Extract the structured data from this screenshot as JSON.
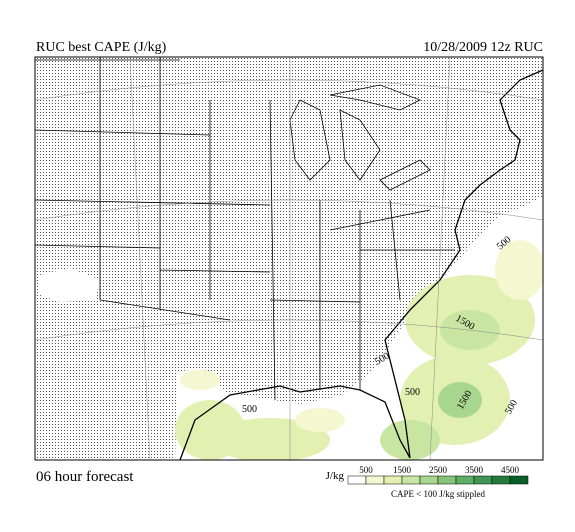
{
  "header": {
    "title": "RUC best CAPE (J/kg)",
    "run": "10/28/2009  12z  RUC"
  },
  "footer": {
    "forecast": "06 hour forecast",
    "note": "CAPE < 100 J/kg stippled"
  },
  "legend": {
    "unit": "J/kg",
    "ticks": [
      500,
      1500,
      2500,
      3500,
      4500
    ],
    "colors": [
      "#ffffff",
      "#f4f7cf",
      "#e2f0b2",
      "#c8e5a2",
      "#a9d68f",
      "#86c47b",
      "#5fae66",
      "#3f9651",
      "#237c3d",
      "#0b5e2b"
    ]
  },
  "contour_labels": [
    "500",
    "1500",
    "500",
    "500",
    "1500",
    "500",
    "500"
  ]
}
